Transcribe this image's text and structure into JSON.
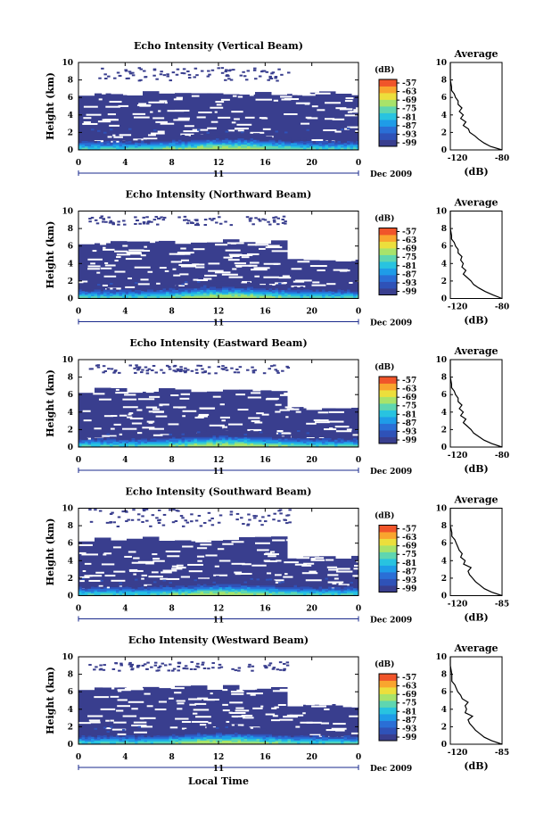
{
  "page": {
    "xlabel": "Local Time"
  },
  "chart_data": [
    {
      "type": "heatmap",
      "title": "Echo Intensity (Vertical Beam)",
      "ylabel": "Height (km)",
      "xlabel": "Local Time",
      "x_ticks": [
        "0",
        "4",
        "8",
        "12",
        "16",
        "20",
        "0"
      ],
      "y_ticks": [
        "0",
        "2",
        "4",
        "6",
        "8",
        "10"
      ],
      "xlim": [
        0,
        24
      ],
      "ylim": [
        0,
        10
      ],
      "date_marker": "11",
      "date_label": "Dec 2009",
      "colorbar": {
        "unit": "(dB)",
        "ticks": [
          "-57",
          "-63",
          "-69",
          "-75",
          "-81",
          "-87",
          "-93",
          "-99"
        ]
      },
      "top_of_echo_km": 6.5,
      "sparse_echo_km": [
        8,
        9.5
      ],
      "enhanced_band_km": [
        0.3,
        2
      ],
      "profile": {
        "title": "Average",
        "xlabel": "(dB)",
        "x_ticks": [
          "-120",
          "-80"
        ],
        "y_ticks": [
          "0",
          "2",
          "4",
          "6",
          "8",
          "10"
        ],
        "xlim": [
          -120,
          -80
        ],
        "heights_km": [
          0,
          0.4,
          0.8,
          1.2,
          1.6,
          2,
          2.4,
          2.8,
          3.2,
          3.6,
          4,
          4.4,
          4.8,
          5.2,
          5.6,
          6,
          6.4,
          6.8,
          7.2,
          8,
          9,
          10
        ],
        "values_db": [
          -80,
          -89,
          -94,
          -98,
          -101,
          -105,
          -106,
          -110,
          -108,
          -112,
          -110,
          -113,
          -111,
          -114,
          -114,
          -116,
          -117,
          -119,
          -119,
          -120,
          -120,
          -120
        ]
      }
    },
    {
      "type": "heatmap",
      "title": "Echo Intensity (Northward Beam)",
      "ylabel": "Height (km)",
      "xlabel": "Local Time",
      "x_ticks": [
        "0",
        "4",
        "8",
        "12",
        "16",
        "20",
        "0"
      ],
      "y_ticks": [
        "0",
        "2",
        "4",
        "6",
        "8",
        "10"
      ],
      "xlim": [
        0,
        24
      ],
      "ylim": [
        0,
        10
      ],
      "date_marker": "11",
      "date_label": "Dec 2009",
      "colorbar": {
        "unit": "(dB)",
        "ticks": [
          "-57",
          "-63",
          "-69",
          "-75",
          "-81",
          "-87",
          "-93",
          "-99"
        ]
      },
      "top_of_echo_km": 6.5,
      "sparse_echo_km": [
        8.5,
        9.5
      ],
      "enhanced_band_km": [
        0.3,
        1.5
      ],
      "profile": {
        "title": "Average",
        "xlabel": "(dB)",
        "x_ticks": [
          "-120",
          "-80"
        ],
        "y_ticks": [
          "0",
          "2",
          "4",
          "6",
          "8",
          "10"
        ],
        "xlim": [
          -120,
          -80
        ],
        "heights_km": [
          0,
          0.4,
          0.8,
          1.2,
          1.6,
          2,
          2.4,
          2.8,
          3.2,
          3.6,
          4,
          4.4,
          4.8,
          5.2,
          5.6,
          6,
          6.4,
          6.8,
          7.2,
          8,
          9,
          10
        ],
        "values_db": [
          -80,
          -87,
          -93,
          -98,
          -102,
          -104,
          -107,
          -110,
          -108,
          -111,
          -110,
          -112,
          -111,
          -114,
          -114,
          -116,
          -117,
          -119,
          -119,
          -120,
          -120,
          -120
        ]
      }
    },
    {
      "type": "heatmap",
      "title": "Echo Intensity (Eastward Beam)",
      "ylabel": "Height (km)",
      "xlabel": "Local Time",
      "x_ticks": [
        "0",
        "4",
        "8",
        "12",
        "16",
        "20",
        "0"
      ],
      "y_ticks": [
        "0",
        "2",
        "4",
        "6",
        "8",
        "10"
      ],
      "xlim": [
        0,
        24
      ],
      "ylim": [
        0,
        10
      ],
      "date_marker": "11",
      "date_label": "Dec 2009",
      "colorbar": {
        "unit": "(dB)",
        "ticks": [
          "-57",
          "-63",
          "-69",
          "-75",
          "-81",
          "-87",
          "-93",
          "-99"
        ]
      },
      "top_of_echo_km": 6.5,
      "sparse_echo_km": [
        8.5,
        9.5
      ],
      "enhanced_band_km": [
        0.3,
        1.5
      ],
      "profile": {
        "title": "Average",
        "xlabel": "(dB)",
        "x_ticks": [
          "-120",
          "-80"
        ],
        "y_ticks": [
          "0",
          "2",
          "4",
          "6",
          "8",
          "10"
        ],
        "xlim": [
          -120,
          -80
        ],
        "heights_km": [
          0,
          0.4,
          0.8,
          1.2,
          1.6,
          2,
          2.4,
          2.8,
          3.2,
          3.6,
          4,
          4.4,
          4.8,
          5.2,
          5.6,
          6,
          6.4,
          6.8,
          7.2,
          8,
          9,
          10
        ],
        "values_db": [
          -80,
          -88,
          -94,
          -98,
          -102,
          -104,
          -107,
          -110,
          -108,
          -112,
          -110,
          -113,
          -111,
          -114,
          -114,
          -116,
          -117,
          -119,
          -119,
          -120,
          -120,
          -120
        ]
      }
    },
    {
      "type": "heatmap",
      "title": "Echo Intensity (Southward Beam)",
      "ylabel": "Height (km)",
      "xlabel": "Local Time",
      "x_ticks": [
        "0",
        "4",
        "8",
        "12",
        "16",
        "20",
        "0"
      ],
      "y_ticks": [
        "0",
        "2",
        "4",
        "6",
        "8",
        "10"
      ],
      "xlim": [
        0,
        24
      ],
      "ylim": [
        0,
        10
      ],
      "date_marker": "11",
      "date_label": "Dec 2009",
      "colorbar": {
        "unit": "(dB)",
        "ticks": [
          "-57",
          "-63",
          "-69",
          "-75",
          "-81",
          "-87",
          "-93",
          "-99"
        ]
      },
      "top_of_echo_km": 6.5,
      "sparse_echo_km": [
        8,
        10
      ],
      "enhanced_band_km": [
        0.3,
        1.5
      ],
      "profile": {
        "title": "Average",
        "xlabel": "(dB)",
        "x_ticks": [
          "-120",
          "-85"
        ],
        "y_ticks": [
          "0",
          "2",
          "4",
          "6",
          "8",
          "10"
        ],
        "xlim": [
          -120,
          -85
        ],
        "heights_km": [
          0,
          0.4,
          0.8,
          1.2,
          1.6,
          2,
          2.4,
          2.8,
          3.2,
          3.6,
          4,
          4.4,
          4.8,
          5.2,
          5.6,
          6,
          6.4,
          6.8,
          7.2,
          8,
          9,
          10
        ],
        "values_db": [
          -85,
          -92,
          -97,
          -100,
          -103,
          -105,
          -107,
          -108,
          -106,
          -111,
          -110,
          -113,
          -112,
          -114,
          -115,
          -116,
          -117,
          -119,
          -119,
          -120,
          -120,
          -120
        ]
      }
    },
    {
      "type": "heatmap",
      "title": "Echo Intensity (Westward Beam)",
      "ylabel": "Height (km)",
      "xlabel": "Local Time",
      "x_ticks": [
        "0",
        "4",
        "8",
        "12",
        "16",
        "20",
        "0"
      ],
      "y_ticks": [
        "0",
        "2",
        "4",
        "6",
        "8",
        "10"
      ],
      "xlim": [
        0,
        24
      ],
      "ylim": [
        0,
        10
      ],
      "date_marker": "11",
      "date_label": "Dec 2009",
      "colorbar": {
        "unit": "(dB)",
        "ticks": [
          "-57",
          "-63",
          "-69",
          "-75",
          "-81",
          "-87",
          "-93",
          "-99"
        ]
      },
      "top_of_echo_km": 6.5,
      "sparse_echo_km": [
        8.5,
        9.5
      ],
      "enhanced_band_km": [
        0.3,
        1.5
      ],
      "profile": {
        "title": "Average",
        "xlabel": "(dB)",
        "x_ticks": [
          "-120",
          "-85"
        ],
        "y_ticks": [
          "0",
          "2",
          "4",
          "6",
          "8",
          "10"
        ],
        "xlim": [
          -120,
          -85
        ],
        "heights_km": [
          0,
          0.4,
          0.8,
          1.2,
          1.6,
          2,
          2.4,
          2.8,
          3.2,
          3.6,
          4,
          4.4,
          4.8,
          5.2,
          5.6,
          6,
          6.4,
          6.8,
          7.2,
          8,
          9,
          10
        ],
        "values_db": [
          -85,
          -92,
          -97,
          -100,
          -103,
          -105,
          -107,
          -108,
          -105,
          -110,
          -109,
          -110,
          -108,
          -112,
          -113,
          -115,
          -116,
          -117,
          -119,
          -119,
          -120,
          -120
        ]
      }
    }
  ],
  "colors": {
    "colormap": [
      "#393e8e",
      "#2f52b8",
      "#2a6fd6",
      "#1f9ce8",
      "#28c3e0",
      "#5fd6b0",
      "#a8e36a",
      "#ecdf3c",
      "#f9a52e",
      "#f0552a"
    ],
    "background_echo": "#393e8e"
  }
}
